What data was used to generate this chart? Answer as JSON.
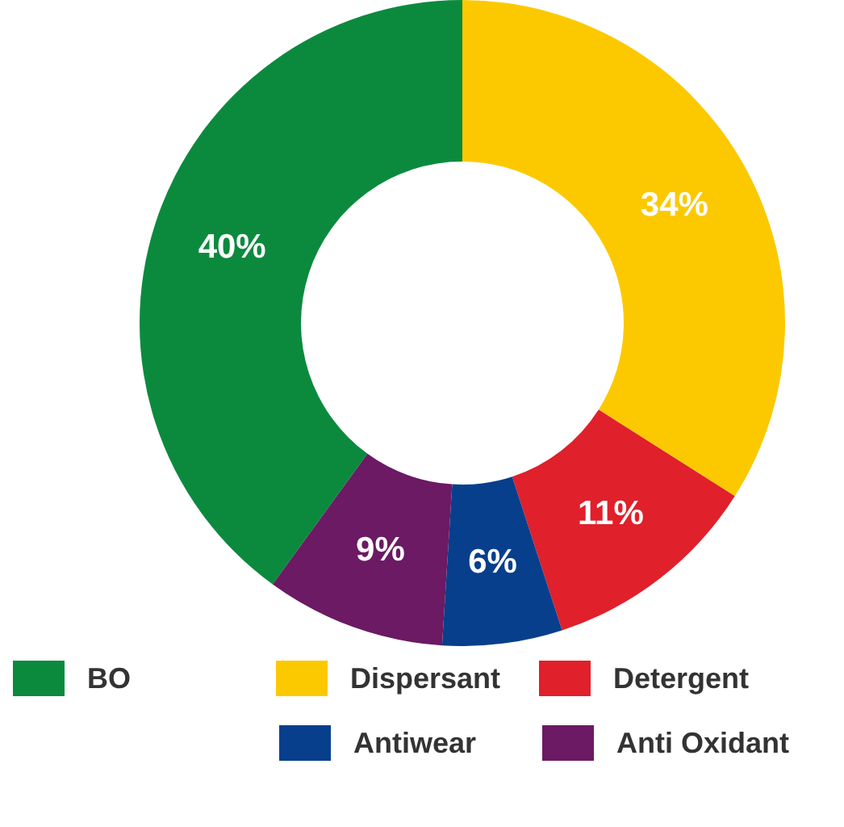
{
  "chart_data": {
    "type": "donut",
    "categories": [
      "BO",
      "Dispersant",
      "Detergent",
      "Antiwear",
      "Anti Oxidant"
    ],
    "values": [
      40,
      34,
      11,
      6,
      9
    ],
    "colors": [
      "#0b8a3e",
      "#fcc900",
      "#e0202b",
      "#073f8c",
      "#6b1a63"
    ],
    "value_labels": [
      "40%",
      "34%",
      "11%",
      "6%",
      "9%"
    ],
    "legend": "bottom"
  }
}
